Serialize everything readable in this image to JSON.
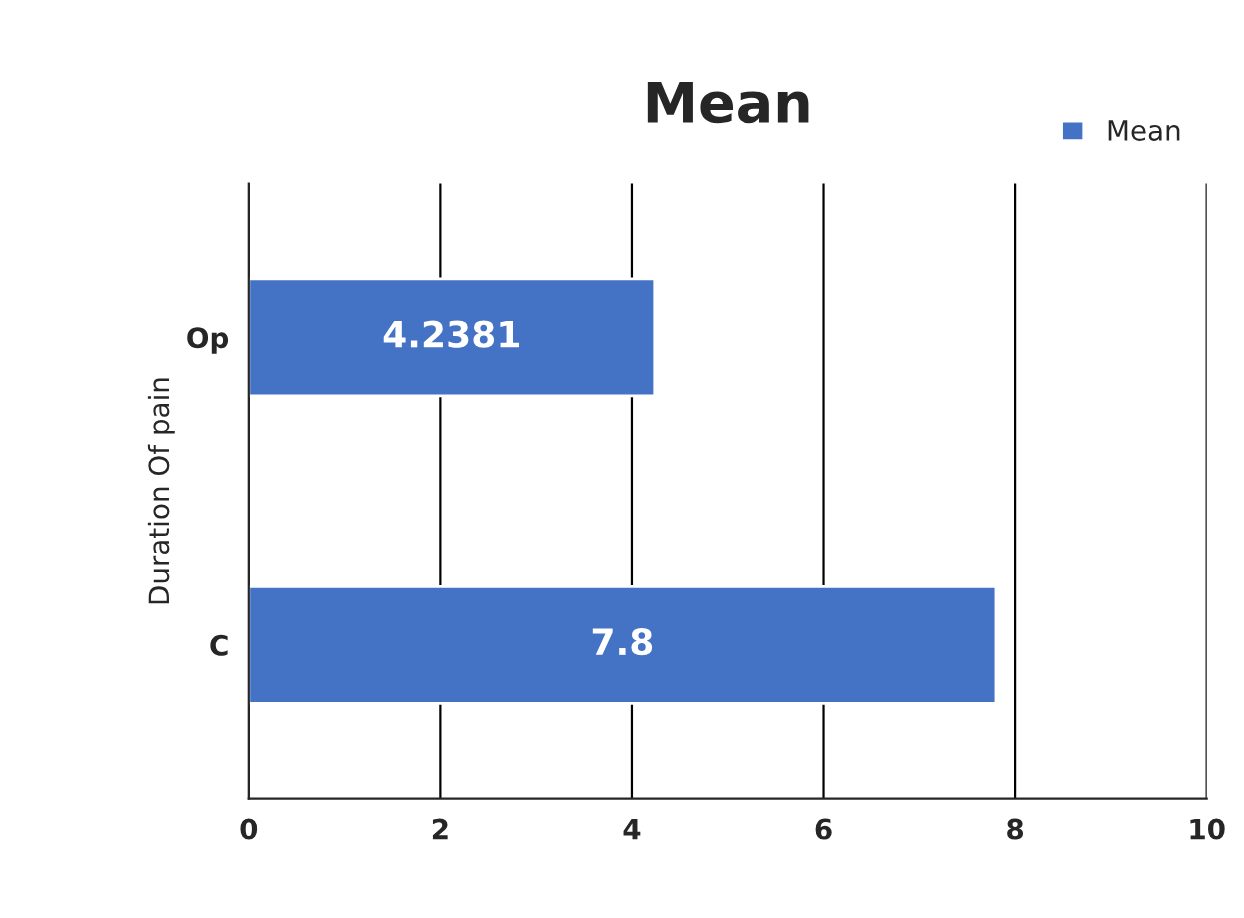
{
  "chart_data": {
    "type": "bar",
    "orientation": "horizontal",
    "title": "Mean",
    "ylabel": "Duration Of pain",
    "categories": [
      "Op",
      "C"
    ],
    "series": [
      {
        "name": "Mean",
        "color": "#4472c4",
        "values": [
          4.2381,
          7.8
        ]
      }
    ],
    "xlim": [
      0,
      10
    ],
    "xticks": [
      0,
      2,
      4,
      6,
      8,
      10
    ],
    "grid": "x",
    "legend": "top right",
    "data_labels": true
  }
}
